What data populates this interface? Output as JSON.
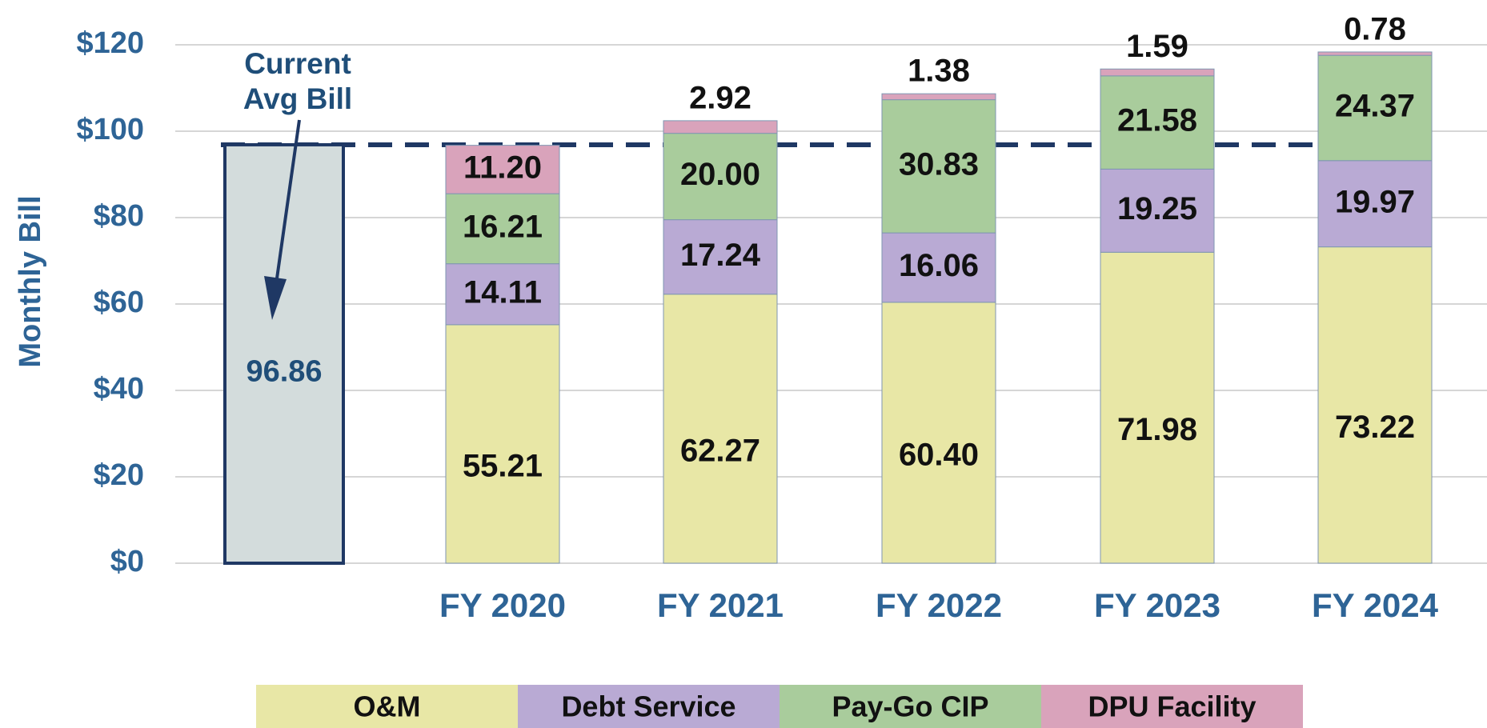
{
  "chart_data": {
    "type": "bar",
    "stacked": true,
    "ylabel": "Monthly Bill",
    "categories": [
      null,
      "FY 2020",
      "FY 2021",
      "FY 2022",
      "FY 2023",
      "FY 2024"
    ],
    "series": [
      {
        "name": "O&M",
        "color": "#e8e7a6",
        "values": [
          null,
          55.21,
          62.27,
          60.4,
          71.98,
          73.22
        ],
        "value_labels": [
          null,
          "55.21",
          "62.27",
          "60.40",
          "71.98",
          "73.22"
        ]
      },
      {
        "name": "Debt Service",
        "color": "#b9aad4",
        "values": [
          null,
          14.11,
          17.24,
          16.06,
          19.25,
          19.97
        ],
        "value_labels": [
          null,
          "14.11",
          "17.24",
          "16.06",
          "19.25",
          "19.97"
        ]
      },
      {
        "name": "Pay-Go CIP",
        "color": "#a9cc9c",
        "values": [
          null,
          16.21,
          20.0,
          30.83,
          21.58,
          24.37
        ],
        "value_labels": [
          null,
          "16.21",
          "20.00",
          "30.83",
          "21.58",
          "24.37"
        ]
      },
      {
        "name": "DPU Facility",
        "color": "#d9a3bb",
        "values": [
          null,
          11.2,
          2.92,
          1.38,
          1.59,
          0.78
        ],
        "value_labels": [
          null,
          "11.20",
          "2.92",
          "1.38",
          "1.59",
          "0.78"
        ]
      }
    ],
    "annotation": {
      "text": "Current Avg Bill",
      "value": 96.86,
      "color": "#d3dcdc"
    },
    "ylim": [
      0,
      120
    ],
    "yticks": [
      {
        "value": 0,
        "label": "$0"
      },
      {
        "value": 20,
        "label": "$20"
      },
      {
        "value": 40,
        "label": "$40"
      },
      {
        "value": 60,
        "label": "$60"
      },
      {
        "value": 80,
        "label": "$80"
      },
      {
        "value": 100,
        "label": "$100"
      },
      {
        "value": 120,
        "label": "$120"
      }
    ],
    "grid": true,
    "legend": "bottom"
  }
}
